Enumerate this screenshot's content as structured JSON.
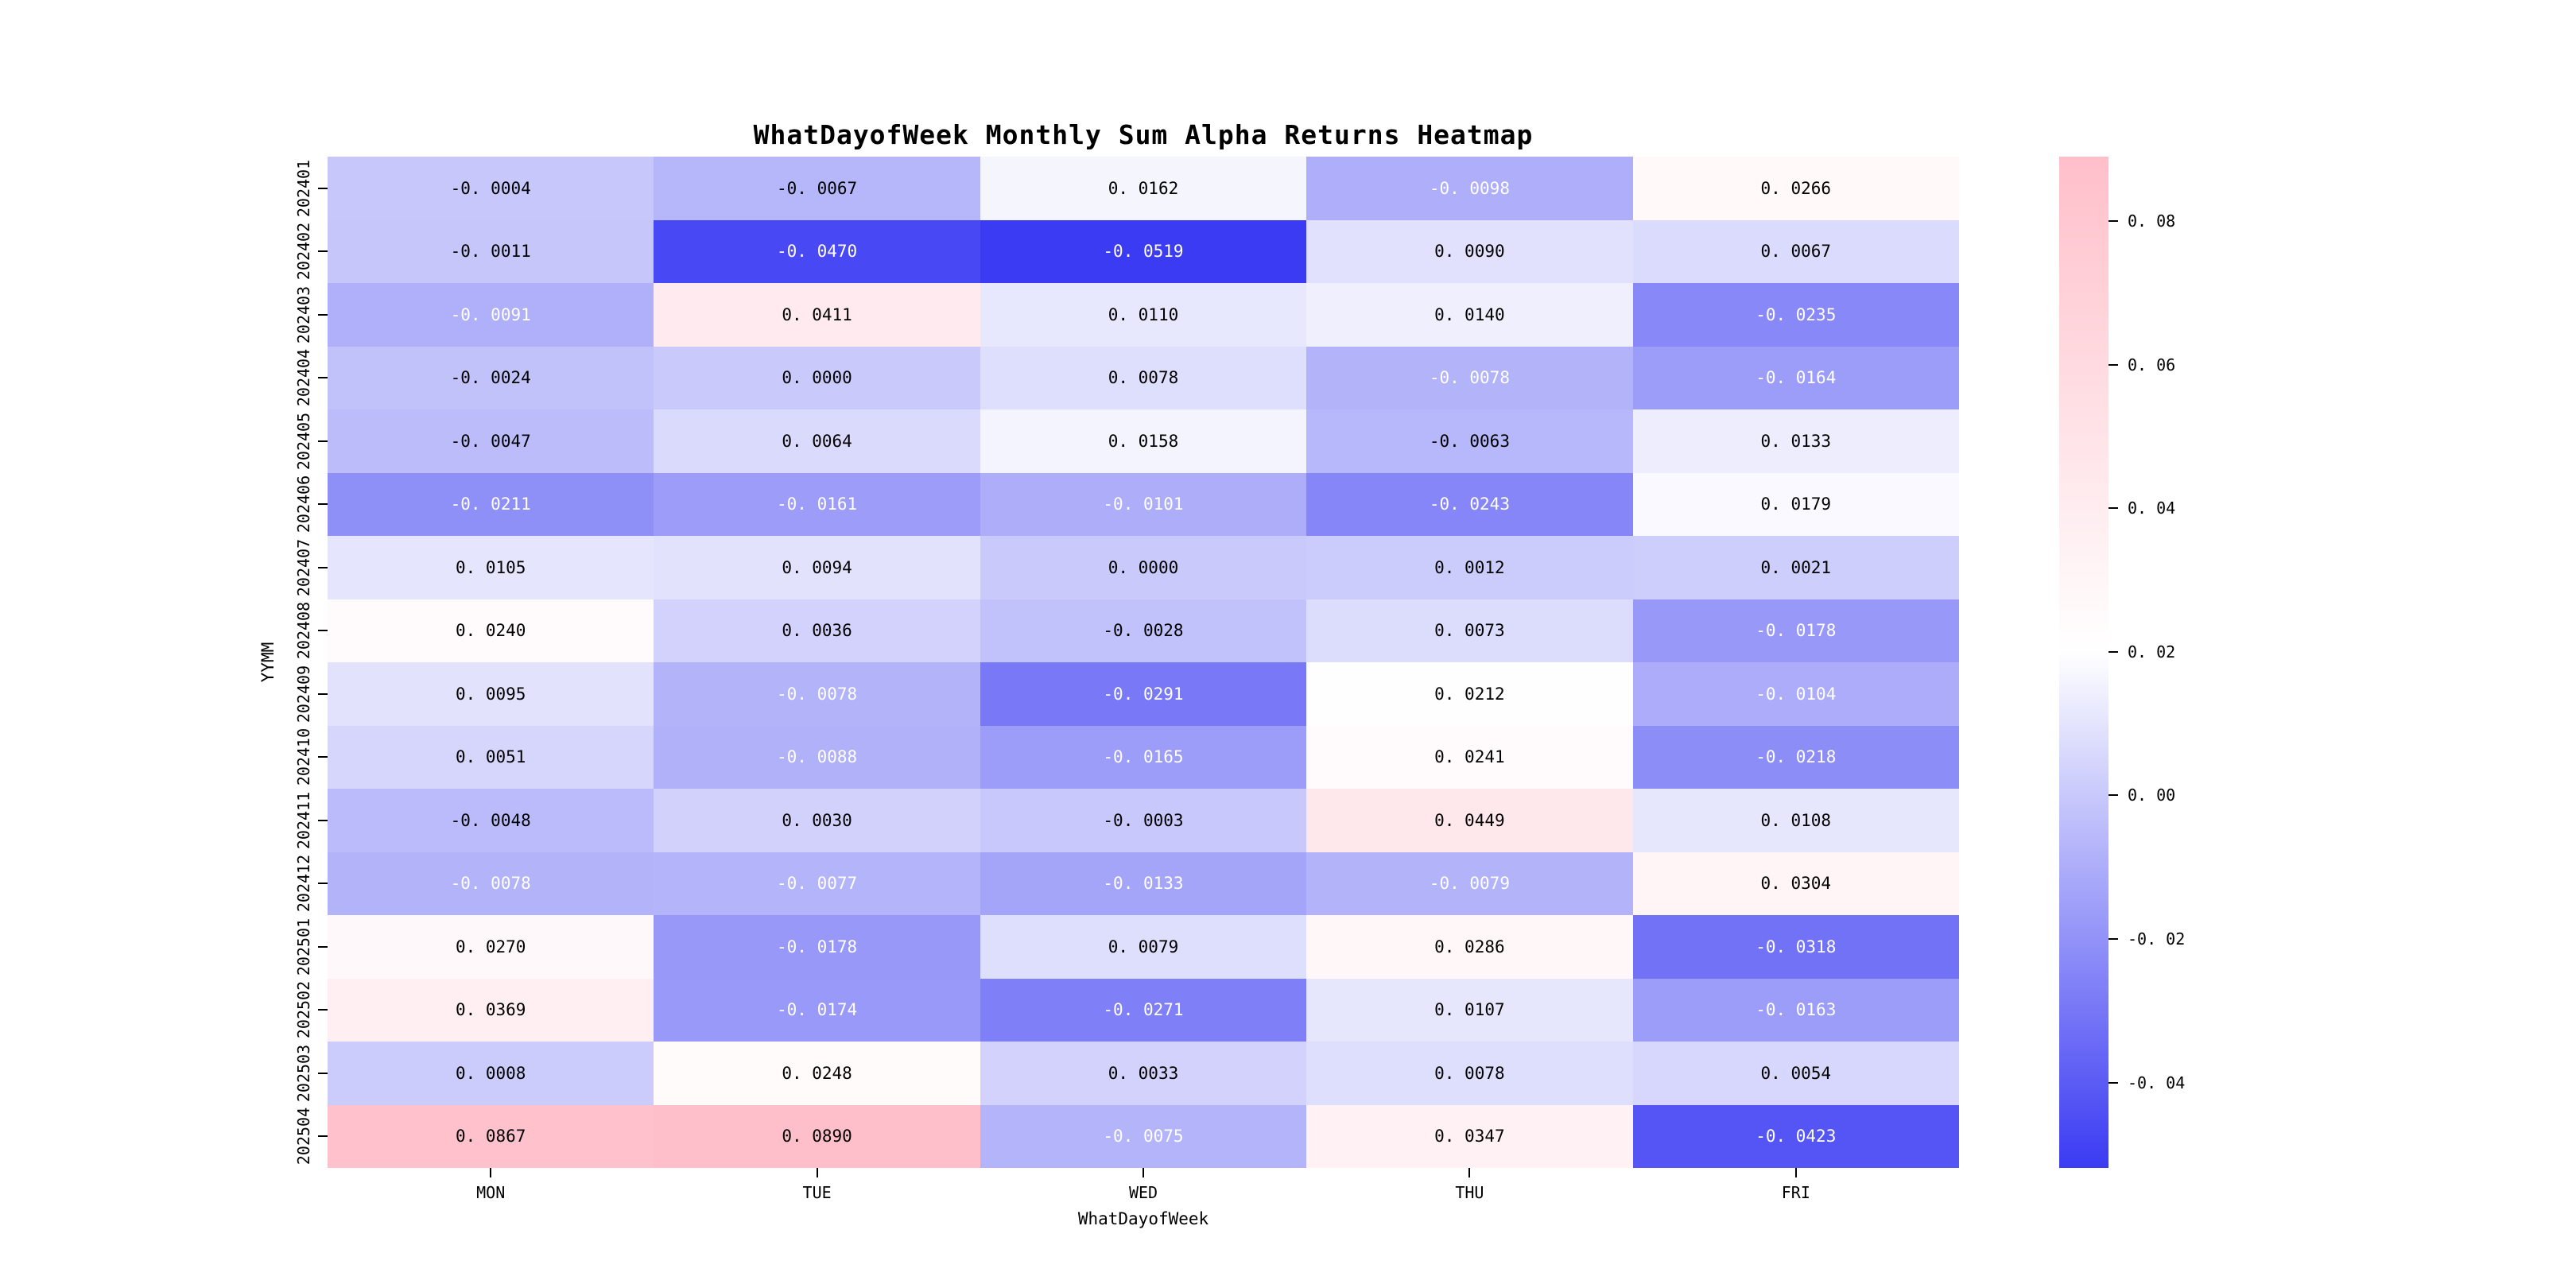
{
  "title": "WhatDayofWeek Monthly Sum Alpha Returns Heatmap",
  "chart_data": {
    "type": "heatmap",
    "title": "WhatDayofWeek Monthly Sum Alpha Returns Heatmap",
    "xlabel": "WhatDayofWeek",
    "ylabel": "YYMM",
    "columns": [
      "MON",
      "TUE",
      "WED",
      "THU",
      "FRI"
    ],
    "rows": [
      "202401",
      "202402",
      "202403",
      "202404",
      "202405",
      "202406",
      "202407",
      "202408",
      "202409",
      "202410",
      "202411",
      "202412",
      "202501",
      "202502",
      "202503",
      "202504"
    ],
    "values": [
      [
        -0.0004,
        -0.0067,
        0.0162,
        -0.0098,
        0.0266
      ],
      [
        -0.0011,
        -0.047,
        -0.0519,
        0.009,
        0.0067
      ],
      [
        -0.0091,
        0.0411,
        0.011,
        0.014,
        -0.0235
      ],
      [
        -0.0024,
        0.0,
        0.0078,
        -0.0078,
        -0.0164
      ],
      [
        -0.0047,
        0.0064,
        0.0158,
        -0.0063,
        0.0133
      ],
      [
        -0.0211,
        -0.0161,
        -0.0101,
        -0.0243,
        0.0179
      ],
      [
        0.0105,
        0.0094,
        0.0,
        0.0012,
        0.0021
      ],
      [
        0.024,
        0.0036,
        -0.0028,
        0.0073,
        -0.0178
      ],
      [
        0.0095,
        -0.0078,
        -0.0291,
        0.0212,
        -0.0104
      ],
      [
        0.0051,
        -0.0088,
        -0.0165,
        0.0241,
        -0.0218
      ],
      [
        -0.0048,
        0.003,
        -0.0003,
        0.0449,
        0.0108
      ],
      [
        -0.0078,
        -0.0077,
        -0.0133,
        -0.0079,
        0.0304
      ],
      [
        0.027,
        -0.0178,
        0.0079,
        0.0286,
        -0.0318
      ],
      [
        0.0369,
        -0.0174,
        -0.0271,
        0.0107,
        -0.0163
      ],
      [
        0.0008,
        0.0248,
        0.0033,
        0.0078,
        0.0054
      ],
      [
        0.0867,
        0.089,
        -0.0075,
        0.0347,
        -0.0423
      ]
    ],
    "vmin": -0.0519,
    "vmax": 0.089,
    "colormap": {
      "low_color": "#3b3bf3",
      "mid_color": "#ffffff",
      "high_color": "#ffbfca",
      "mid_position": 0.51
    },
    "annot_decimals": 4,
    "annot_white_text_below": -0.007,
    "colorbar_ticks": [
      0.08,
      0.06,
      0.04,
      0.02,
      0.0,
      -0.02,
      -0.04
    ],
    "colorbar_tick_decimals": 2,
    "legend_position": "right",
    "grid": false
  }
}
